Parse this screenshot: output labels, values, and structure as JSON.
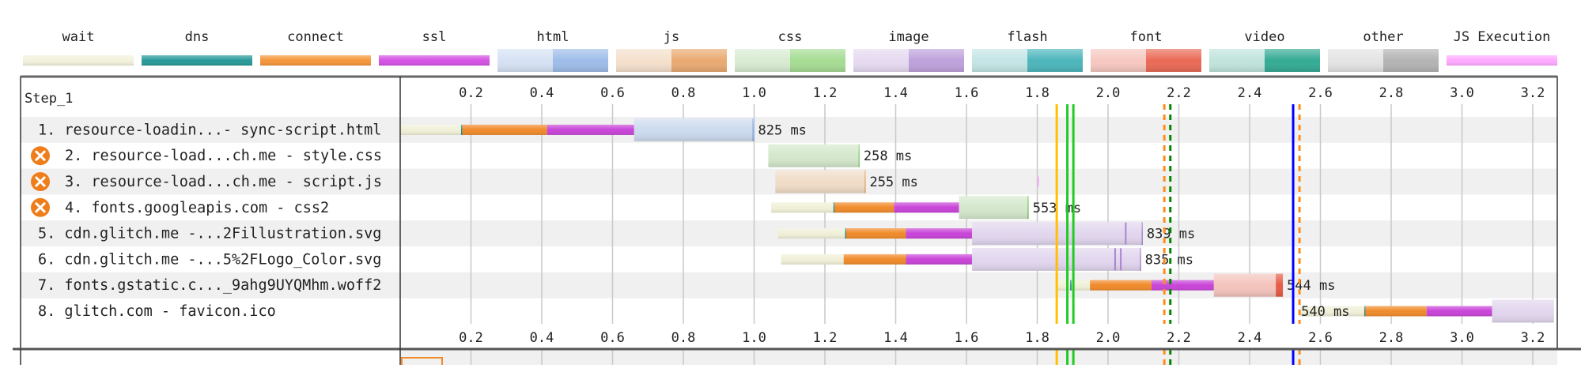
{
  "legend": [
    {
      "label": "wait",
      "style": "thin",
      "colors": [
        "#f2f2dc",
        "#dcdcbe"
      ]
    },
    {
      "label": "dns",
      "style": "thin",
      "colors": [
        "#2a9a9a",
        "#157070"
      ]
    },
    {
      "label": "connect",
      "style": "thin",
      "colors": [
        "#f5963a",
        "#e0761a"
      ]
    },
    {
      "label": "ssl",
      "style": "thin",
      "colors": [
        "#d452e4",
        "#b032c4"
      ]
    },
    {
      "label": "html",
      "style": "split",
      "colors": [
        "#d6e2f4",
        "#9ebde9"
      ]
    },
    {
      "label": "js",
      "style": "split",
      "colors": [
        "#f5e0cc",
        "#e9aa72"
      ]
    },
    {
      "label": "css",
      "style": "split",
      "colors": [
        "#d8ecd2",
        "#a6dc94"
      ]
    },
    {
      "label": "image",
      "style": "split",
      "colors": [
        "#e6daf0",
        "#bea2dc"
      ]
    },
    {
      "label": "flash",
      "style": "split",
      "colors": [
        "#c4e6e6",
        "#4cb6bc"
      ]
    },
    {
      "label": "font",
      "style": "split",
      "colors": [
        "#f6c8c0",
        "#ea6a56"
      ]
    },
    {
      "label": "video",
      "style": "split",
      "colors": [
        "#c0e4dc",
        "#34ab94"
      ]
    },
    {
      "label": "other",
      "style": "split",
      "colors": [
        "#e4e4e4",
        "#b4b4b4"
      ]
    },
    {
      "label": "JS Execution",
      "style": "thin",
      "colors": [
        "#ffaaff",
        "#ffaaff"
      ]
    }
  ],
  "waterfall": {
    "step_label": "Step_1",
    "axis": {
      "unit": "s",
      "max": 3.27,
      "ticks": [
        "0.2",
        "0.4",
        "0.6",
        "0.8",
        "1.0",
        "1.2",
        "1.4",
        "1.6",
        "1.8",
        "2.0",
        "2.2",
        "2.4",
        "2.6",
        "2.8",
        "3.0",
        "3.2"
      ]
    },
    "segment_colors": {
      "wait": "#f0f0d8",
      "dns": "#1d8a8a",
      "connect": "#f08a2a",
      "ssl": "#c844d8",
      "html": "#cddbef",
      "html-dark": "#8cb0e8",
      "js": "#f0dcc8",
      "js-dark": "#e8a868",
      "css": "#d4e8cc",
      "css-dark": "#8ed07a",
      "image": "#e2d6ee",
      "image-dark": "#a884d0",
      "font": "#f4c4bc",
      "font-dark": "#e65a46",
      "js-exec": "#ffaaff"
    },
    "rows": [
      {
        "label": "1. resource-loadin...- sync-script.html",
        "warning": false,
        "duration": "825 ms",
        "segments": [
          [
            "wait",
            0,
            0.172
          ],
          [
            "dns",
            0.172,
            0.175
          ],
          [
            "connect",
            0.175,
            0.415
          ],
          [
            "ssl",
            0.415,
            0.661
          ],
          [
            "html",
            0.661,
            0.995
          ],
          [
            "html-dark",
            0.995,
            1.0
          ]
        ],
        "marks": []
      },
      {
        "label": "2. resource-load...ch.me - style.css",
        "warning": true,
        "duration": "258 ms",
        "segments": [
          [
            "css",
            1.04,
            1.295
          ],
          [
            "css-dark",
            1.295,
            1.298
          ]
        ],
        "marks": []
      },
      {
        "label": "3. resource-load...ch.me - script.js",
        "warning": true,
        "duration": "255 ms",
        "segments": [
          [
            "js",
            1.06,
            1.312
          ],
          [
            "js-dark",
            1.312,
            1.315
          ],
          [
            "js-exec",
            1.801,
            1.805
          ]
        ],
        "marks": []
      },
      {
        "label": "4. fonts.googleapis.com - css2",
        "warning": true,
        "duration": "553 ms",
        "segments": [
          [
            "wait",
            1.048,
            1.224
          ],
          [
            "dns",
            1.224,
            1.227
          ],
          [
            "connect",
            1.227,
            1.395
          ],
          [
            "ssl",
            1.395,
            1.579
          ],
          [
            "css",
            1.579,
            1.772
          ],
          [
            "css-dark",
            1.772,
            1.776
          ]
        ],
        "marks": []
      },
      {
        "label": "5. cdn.glitch.me -...2Fillustration.svg",
        "warning": false,
        "duration": "839 ms",
        "segments": [
          [
            "wait",
            1.068,
            1.257
          ],
          [
            "dns",
            1.257,
            1.26
          ],
          [
            "connect",
            1.26,
            1.429
          ],
          [
            "ssl",
            1.429,
            1.616
          ],
          [
            "image",
            1.616,
            2.095
          ],
          [
            "image-dark",
            2.095,
            2.098
          ]
        ],
        "marks": [
          2.05
        ]
      },
      {
        "label": "6. cdn.glitch.me -...5%2FLogo_Color.svg",
        "warning": false,
        "duration": "835 ms",
        "segments": [
          [
            "wait",
            1.076,
            1.253
          ],
          [
            "connect",
            1.253,
            1.429
          ],
          [
            "ssl",
            1.429,
            1.616
          ],
          [
            "image",
            1.616,
            2.09
          ],
          [
            "image-dark",
            2.09,
            2.093
          ]
        ],
        "marks": [
          2.02,
          2.036
        ]
      },
      {
        "label": "7. fonts.gstatic.c..._9ahg9UYQMhm.woff2",
        "warning": false,
        "duration": "544 ms",
        "segments": [
          [
            "wait",
            1.855,
            1.893
          ],
          [
            "dns",
            1.893,
            1.897
          ],
          [
            "wait",
            1.897,
            1.949
          ],
          [
            "connect",
            1.949,
            2.123
          ],
          [
            "ssl",
            2.123,
            2.299
          ],
          [
            "font",
            2.299,
            2.474
          ],
          [
            "font-dark",
            2.474,
            2.494
          ]
        ],
        "marks": []
      },
      {
        "label": "8. glitch.com - favicon.ico",
        "warning": false,
        "duration": "540 ms",
        "segments": [
          [
            "wait",
            2.541,
            2.724
          ],
          [
            "dns",
            2.724,
            2.727
          ],
          [
            "connect",
            2.727,
            2.9
          ],
          [
            "ssl",
            2.9,
            3.085
          ],
          [
            "image",
            3.085,
            3.26
          ]
        ],
        "marks": []
      }
    ],
    "events": [
      {
        "time": 1.855,
        "color": "#ffc000",
        "style": "solid"
      },
      {
        "time": 1.885,
        "color": "#22cc22",
        "style": "solid"
      },
      {
        "time": 1.902,
        "color": "#22cc22",
        "style": "solid"
      },
      {
        "time": 2.159,
        "color": "#ff8c1a",
        "style": "dashed"
      },
      {
        "time": 2.176,
        "color": "#008800",
        "style": "dashed"
      },
      {
        "time": 2.523,
        "color": "#0000ff",
        "style": "solid"
      },
      {
        "time": 2.541,
        "color": "#ff8c1a",
        "style": "dashed"
      }
    ]
  }
}
